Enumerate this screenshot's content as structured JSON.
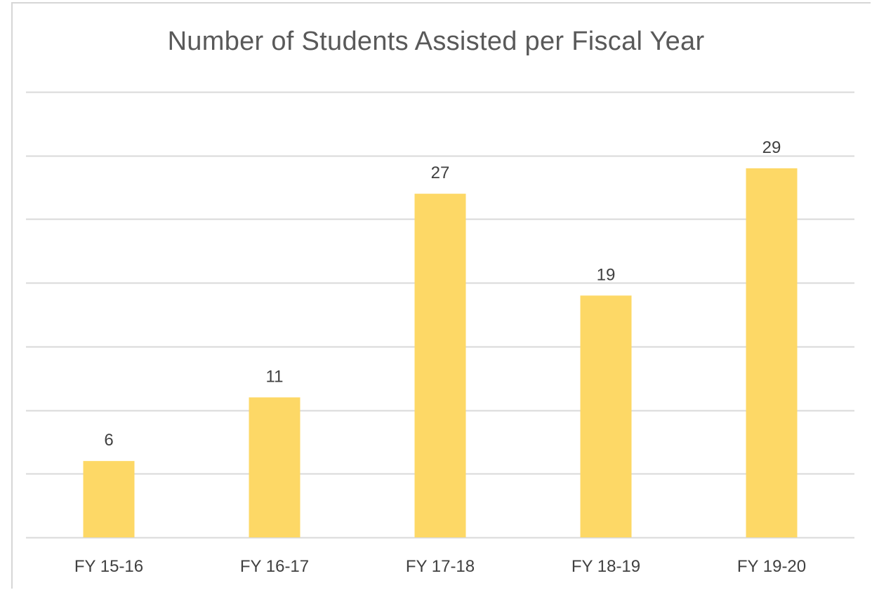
{
  "chart_data": {
    "type": "bar",
    "title": "Number of Students Assisted per Fiscal Year",
    "categories": [
      "FY 15-16",
      "FY 16-17",
      "FY 17-18",
      "FY 18-19",
      "FY 19-20"
    ],
    "values": [
      6,
      11,
      27,
      19,
      29
    ],
    "data_labels": [
      "6",
      "11",
      "27",
      "19",
      "29"
    ],
    "xlabel": "",
    "ylabel": "",
    "ylim": [
      0,
      35
    ],
    "y_gridline_step": 5,
    "y_axis_labels_visible": false,
    "grid": true,
    "legend": "none"
  },
  "colors": {
    "bar": "#FDD866",
    "gridline": "#d9d9d9",
    "axis": "#d9d9d9",
    "label_text": "#404040",
    "title_text": "#595959"
  }
}
